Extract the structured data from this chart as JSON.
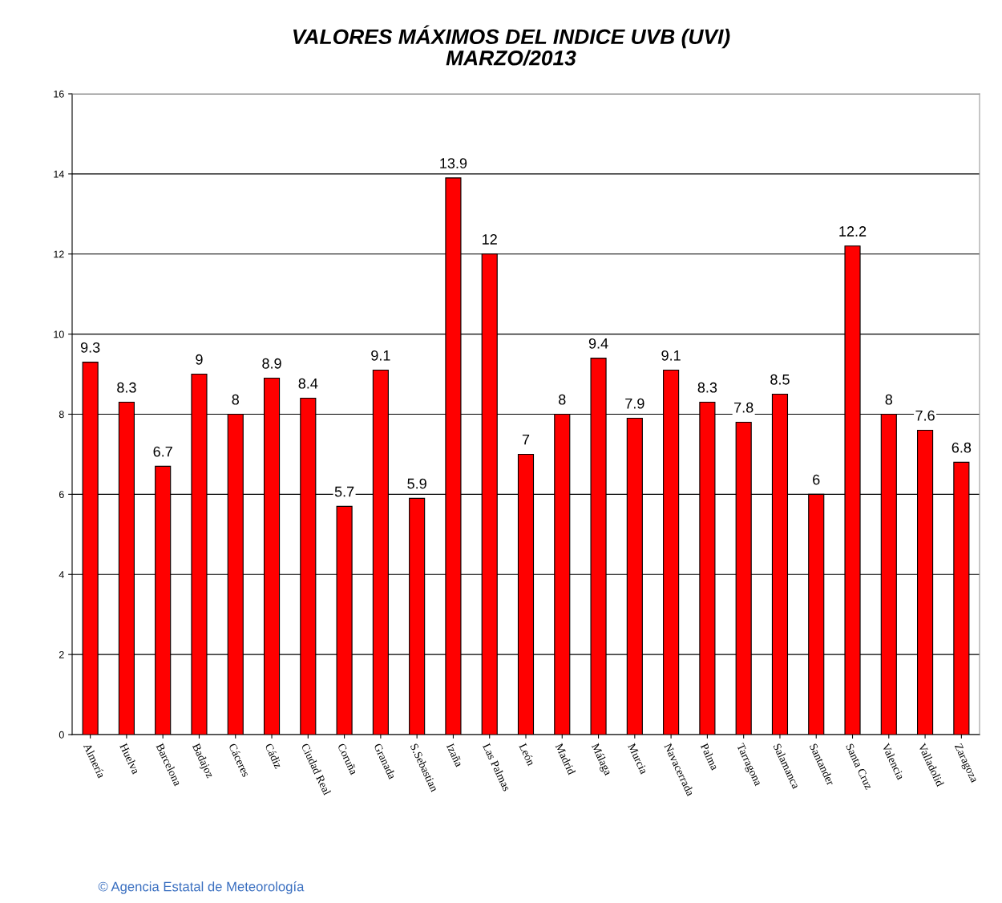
{
  "chart_data": {
    "type": "bar",
    "title": "VALORES MÁXIMOS DEL INDICE UVB (UVI)\nMARZO/2013",
    "categories": [
      "Almería",
      "Huelva",
      "Barcelona",
      "Badajoz",
      "Cáceres",
      "Cádiz",
      "Ciudad Real",
      "Coruña",
      "Granada",
      "S.Sebastian",
      "Izaña",
      "Las Palmas",
      "León",
      "Madrid",
      "Málaga",
      "Murcia",
      "Navacerrada",
      "Palma",
      "Tarragona",
      "Salamanca",
      "Santander",
      "Santa Cruz",
      "Valencia",
      "Valladolid",
      "Zaragoza"
    ],
    "values": [
      9.3,
      8.3,
      6.7,
      9,
      8,
      8.9,
      8.4,
      5.7,
      9.1,
      5.9,
      13.9,
      12,
      7,
      8,
      9.4,
      7.9,
      9.1,
      8.3,
      7.8,
      8.5,
      6,
      12.2,
      8,
      7.6,
      6.8
    ],
    "color": "#ff0000",
    "ylim": [
      0,
      16
    ],
    "yticks": [
      0,
      2,
      4,
      6,
      8,
      10,
      12,
      14,
      16
    ],
    "grid": "y",
    "legend": false,
    "data_labels": true,
    "annotations": [
      "© Agencia Estatal de Meteorología"
    ]
  }
}
